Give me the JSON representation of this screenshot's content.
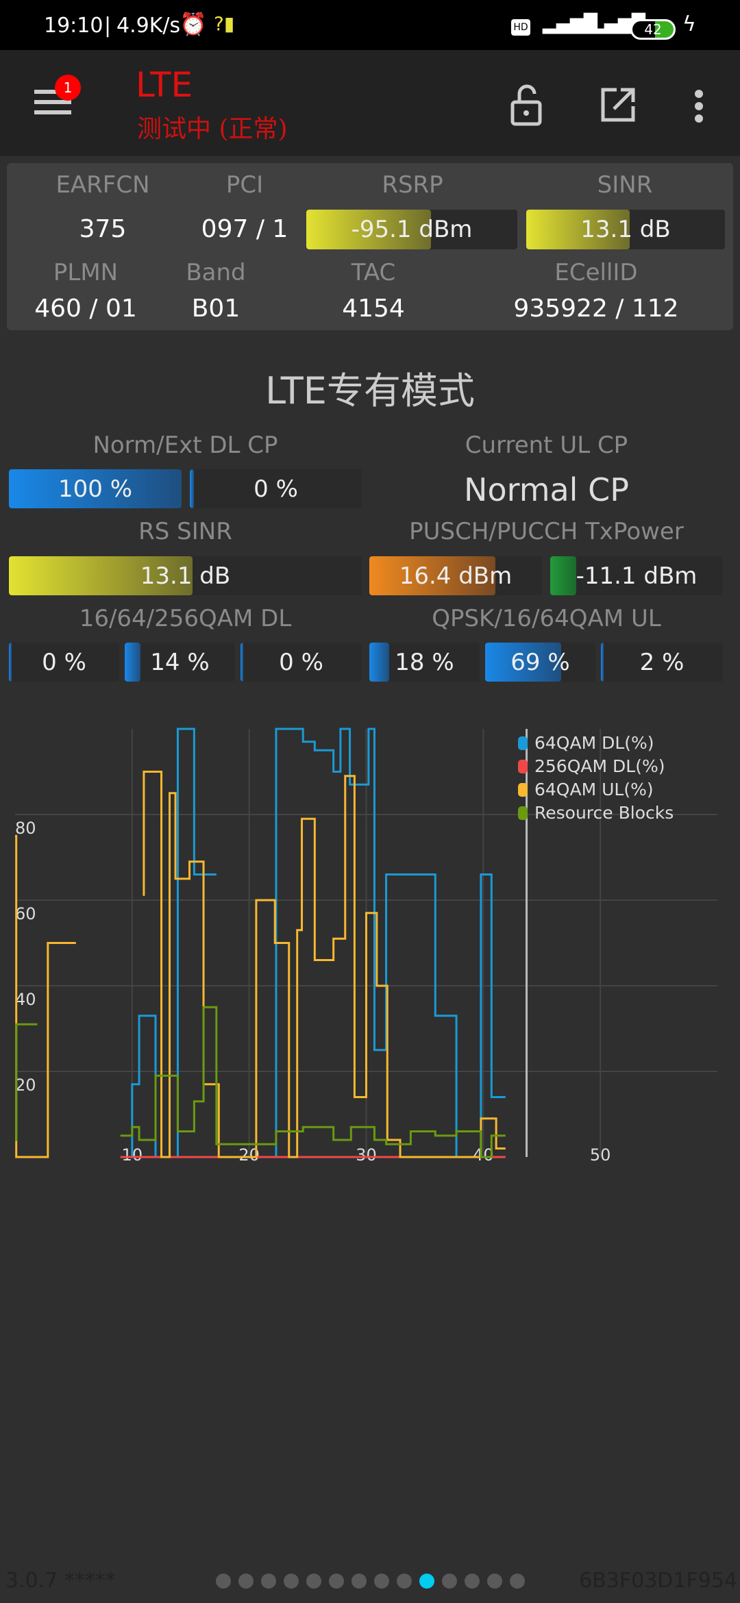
{
  "status_bar": {
    "time": "19:10",
    "speed": "4.9K/s",
    "battery": "42",
    "icons": [
      "alarm-icon",
      "signal-unknown-icon",
      "hd-icon",
      "5g-signal-icon",
      "hd-signal-icon",
      "battery-icon",
      "charging-icon"
    ]
  },
  "app_bar": {
    "title": "LTE",
    "subtitle": "测试中 (正常)",
    "badge": "1",
    "title_color": "#e01010",
    "icons": [
      "menu-icon",
      "lock-open-icon",
      "open-external-icon",
      "more-vert-icon"
    ]
  },
  "cell_info": {
    "row1_labels": [
      "EARFCN",
      "PCI",
      "RSRP",
      "SINR"
    ],
    "earfcn": "375",
    "pci": "097 / 1",
    "rsrp": {
      "value": "-95.1 dBm",
      "fill_pct": 59
    },
    "sinr": {
      "value": "13.1 dB",
      "fill_pct": 52
    },
    "row2_labels": [
      "PLMN",
      "Band",
      "TAC",
      "ECellID"
    ],
    "row2_values": [
      "460 / 01",
      "B01",
      "4154",
      "935922 / 112"
    ]
  },
  "section_title": "LTE专有模式",
  "dl_cp": {
    "label": "Norm/Ext DL CP",
    "bars": [
      {
        "value": "100 %",
        "fill_pct": 100
      },
      {
        "value": "0 %",
        "fill_pct": 0
      }
    ]
  },
  "ul_cp": {
    "label": "Current UL CP",
    "value": "Normal CP"
  },
  "rs_sinr": {
    "label": "RS SINR",
    "value": "13.1 dB",
    "fill_pct": 52
  },
  "tx_power": {
    "label": "PUSCH/PUCCH TxPower",
    "bars": [
      {
        "value": "16.4 dBm",
        "fill_pct": 73
      },
      {
        "value": "-11.1 dBm",
        "fill_pct": 15
      }
    ]
  },
  "qam_dl": {
    "label": "16/64/256QAM DL",
    "bars": [
      {
        "value": "0 %",
        "fill_pct": 0
      },
      {
        "value": "14 %",
        "fill_pct": 14
      },
      {
        "value": "0 %",
        "fill_pct": 0
      }
    ]
  },
  "qam_ul": {
    "label": "QPSK/16/64QAM UL",
    "bars": [
      {
        "value": "18 %",
        "fill_pct": 18
      },
      {
        "value": "69 %",
        "fill_pct": 69
      },
      {
        "value": "2 %",
        "fill_pct": 2
      }
    ]
  },
  "chart_data": {
    "type": "line",
    "step": true,
    "grid": true,
    "legend_placement": "top-right",
    "xlim": [
      0,
      60
    ],
    "ylim": [
      0,
      100
    ],
    "xticks": [
      10,
      20,
      30,
      40,
      50
    ],
    "yticks": [
      20,
      40,
      60,
      80
    ],
    "cursor_x": 43.7,
    "series": [
      {
        "name": "64QAM DL(%)",
        "color": "#1a9ad6",
        "segments": [
          [
            [
              10,
              0
            ],
            [
              10,
              17
            ],
            [
              10.6,
              33
            ],
            [
              12,
              0
            ],
            [
              13.9,
              100
            ],
            [
              15.3,
              66
            ],
            [
              17.2,
              66
            ]
          ],
          [
            [
              22.3,
              0
            ],
            [
              22.3,
              100
            ],
            [
              24.6,
              97
            ],
            [
              25.6,
              95
            ],
            [
              27.2,
              90
            ],
            [
              27.8,
              100
            ],
            [
              28.6,
              87
            ],
            [
              30.2,
              100
            ],
            [
              30.7,
              25
            ],
            [
              31.7,
              66
            ],
            [
              35.9,
              33
            ],
            [
              37.7,
              0
            ],
            [
              39.8,
              66
            ],
            [
              40.7,
              14
            ],
            [
              41.9,
              14
            ]
          ]
        ]
      },
      {
        "name": "256QAM DL(%)",
        "color": "#f04848",
        "segments": [
          [
            [
              9,
              0
            ],
            [
              41.9,
              0
            ]
          ]
        ]
      },
      {
        "name": "64QAM UL(%)",
        "color": "#f8b830",
        "segments": [
          [
            [
              0,
              75
            ],
            [
              0.1,
              0
            ],
            [
              2.8,
              50
            ],
            [
              5.2,
              50
            ]
          ],
          [
            [
              11,
              61
            ],
            [
              11,
              90
            ],
            [
              12.5,
              0
            ],
            [
              13.2,
              85
            ],
            [
              13.7,
              65
            ],
            [
              14.9,
              69
            ],
            [
              16.1,
              17
            ],
            [
              17.4,
              0
            ],
            [
              20.6,
              60
            ],
            [
              22.2,
              50
            ],
            [
              23.4,
              0
            ],
            [
              24.1,
              53
            ],
            [
              24.5,
              79
            ],
            [
              25.6,
              46
            ],
            [
              27.2,
              51
            ],
            [
              28.2,
              89
            ],
            [
              29,
              14
            ],
            [
              30,
              57
            ],
            [
              30.9,
              40
            ],
            [
              31.8,
              4
            ],
            [
              32.9,
              0
            ],
            [
              39.8,
              9
            ],
            [
              41.1,
              2
            ],
            [
              41.9,
              2
            ]
          ]
        ]
      },
      {
        "name": "Resource Blocks",
        "color": "#6a9a10",
        "segments": [
          [
            [
              0,
              4
            ],
            [
              0.1,
              31
            ],
            [
              1.9,
              31
            ]
          ],
          [
            [
              9,
              5
            ],
            [
              10,
              7
            ],
            [
              10.6,
              4
            ],
            [
              12,
              19
            ],
            [
              13.9,
              6
            ],
            [
              15.3,
              13
            ],
            [
              16.1,
              35
            ],
            [
              17.2,
              3
            ],
            [
              22.3,
              6
            ],
            [
              24.6,
              7
            ],
            [
              27.2,
              4
            ],
            [
              28.7,
              7
            ],
            [
              30.7,
              4
            ],
            [
              31.7,
              3
            ],
            [
              33.8,
              6
            ],
            [
              35.9,
              5
            ],
            [
              37.7,
              6
            ],
            [
              39.8,
              0
            ],
            [
              40.7,
              5
            ],
            [
              41.9,
              5
            ]
          ]
        ]
      }
    ]
  },
  "footer": {
    "version": "3.0.7 *****",
    "device_id": "6B3F03D1F954",
    "page_count": 14,
    "active_page": 10,
    "active_color": "#00cdf0"
  }
}
